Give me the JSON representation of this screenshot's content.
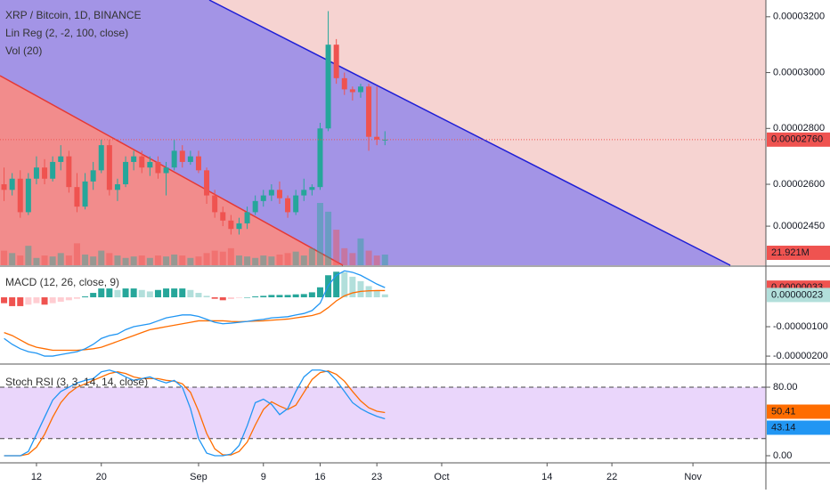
{
  "chart_data": [
    {
      "type": "candlestick",
      "title": "XRP / Bitcoin, 1D, BINANCE",
      "indicators": [
        "Lin Reg (2, -2, 100, close)",
        "Vol (20)"
      ],
      "x": [
        0,
        1,
        2,
        3,
        4,
        5,
        6,
        7,
        8,
        9,
        10,
        11,
        12,
        13,
        14,
        15,
        16,
        17,
        18,
        19,
        20,
        21,
        22,
        23,
        24,
        25,
        26,
        27,
        28,
        29,
        30,
        31,
        32,
        33,
        34,
        35,
        36,
        37,
        38,
        39,
        40,
        41,
        42,
        43,
        44,
        45,
        46,
        47
      ],
      "xlim": [
        -0.5,
        94
      ],
      "xticks": [
        {
          "value": 4,
          "label": "12"
        },
        {
          "value": 12,
          "label": "20"
        },
        {
          "value": 24,
          "label": "Sep"
        },
        {
          "value": 32,
          "label": "9"
        },
        {
          "value": 39,
          "label": "16"
        },
        {
          "value": 46,
          "label": "23"
        },
        {
          "value": 54,
          "label": "Oct"
        },
        {
          "value": 67,
          "label": "14"
        },
        {
          "value": 75,
          "label": "22"
        },
        {
          "value": 85,
          "label": "Nov"
        }
      ],
      "open": [
        2.6e-05,
        2.58e-05,
        2.62e-05,
        2.5e-05,
        2.62e-05,
        2.66e-05,
        2.62e-05,
        2.68e-05,
        2.7e-05,
        2.59e-05,
        2.52e-05,
        2.61e-05,
        2.65e-05,
        2.74e-05,
        2.58e-05,
        2.6e-05,
        2.68e-05,
        2.7e-05,
        2.66e-05,
        2.68e-05,
        2.64e-05,
        2.66e-05,
        2.72e-05,
        2.68e-05,
        2.7e-05,
        2.65e-05,
        2.56e-05,
        2.5e-05,
        2.47e-05,
        2.44e-05,
        2.46e-05,
        2.5e-05,
        2.54e-05,
        2.56e-05,
        2.58e-05,
        2.55e-05,
        2.5e-05,
        2.56e-05,
        2.58e-05,
        2.59e-05,
        2.8e-05,
        3.1e-05,
        2.98e-05,
        2.94e-05,
        2.93e-05,
        2.95e-05,
        2.77e-05,
        2.76e-05
      ],
      "high": [
        2.66e-05,
        2.64e-05,
        2.65e-05,
        2.64e-05,
        2.7e-05,
        2.69e-05,
        2.7e-05,
        2.74e-05,
        2.72e-05,
        2.64e-05,
        2.64e-05,
        2.68e-05,
        2.76e-05,
        2.76e-05,
        2.62e-05,
        2.7e-05,
        2.72e-05,
        2.72e-05,
        2.7e-05,
        2.7e-05,
        2.68e-05,
        2.76e-05,
        2.74e-05,
        2.72e-05,
        2.72e-05,
        2.66e-05,
        2.58e-05,
        2.52e-05,
        2.49e-05,
        2.48e-05,
        2.52e-05,
        2.56e-05,
        2.58e-05,
        2.6e-05,
        2.61e-05,
        2.56e-05,
        2.58e-05,
        2.62e-05,
        2.6e-05,
        2.82e-05,
        3.22e-05,
        3.12e-05,
        3e-05,
        2.95e-05,
        2.96e-05,
        2.96e-05,
        2.95e-05,
        2.79e-05
      ],
      "low": [
        2.54e-05,
        2.56e-05,
        2.48e-05,
        2.49e-05,
        2.6e-05,
        2.6e-05,
        2.61e-05,
        2.65e-05,
        2.57e-05,
        2.5e-05,
        2.51e-05,
        2.58e-05,
        2.64e-05,
        2.56e-05,
        2.54e-05,
        2.59e-05,
        2.65e-05,
        2.64e-05,
        2.63e-05,
        2.62e-05,
        2.56e-05,
        2.65e-05,
        2.66e-05,
        2.67e-05,
        2.64e-05,
        2.53e-05,
        2.48e-05,
        2.45e-05,
        2.42e-05,
        2.42e-05,
        2.44e-05,
        2.49e-05,
        2.52e-05,
        2.54e-05,
        2.53e-05,
        2.48e-05,
        2.49e-05,
        2.54e-05,
        2.56e-05,
        2.58e-05,
        2.79e-05,
        2.96e-05,
        2.92e-05,
        2.9e-05,
        2.91e-05,
        2.72e-05,
        2.74e-05,
        2.74e-05
      ],
      "close": [
        2.58e-05,
        2.62e-05,
        2.5e-05,
        2.62e-05,
        2.66e-05,
        2.62e-05,
        2.68e-05,
        2.7e-05,
        2.59e-05,
        2.52e-05,
        2.61e-05,
        2.65e-05,
        2.74e-05,
        2.58e-05,
        2.6e-05,
        2.68e-05,
        2.7e-05,
        2.66e-05,
        2.68e-05,
        2.64e-05,
        2.66e-05,
        2.72e-05,
        2.68e-05,
        2.7e-05,
        2.65e-05,
        2.56e-05,
        2.5e-05,
        2.47e-05,
        2.44e-05,
        2.46e-05,
        2.5e-05,
        2.54e-05,
        2.56e-05,
        2.58e-05,
        2.55e-05,
        2.5e-05,
        2.56e-05,
        2.58e-05,
        2.59e-05,
        2.8e-05,
        3.1e-05,
        2.98e-05,
        2.94e-05,
        2.93e-05,
        2.95e-05,
        2.77e-05,
        2.76e-05,
        2.76e-05
      ],
      "close_label": "0.00002760",
      "up_color": "#26a69a",
      "down_color": "#ef5350",
      "ylim": [
        2.31e-05,
        3.26e-05
      ],
      "yticks": [
        {
          "value": 3.2e-05,
          "label": "0.00003200"
        },
        {
          "value": 3e-05,
          "label": "0.00003000"
        },
        {
          "value": 2.8e-05,
          "label": "0.00002800"
        },
        {
          "value": 2.6e-05,
          "label": "0.00002600"
        },
        {
          "value": 2.45e-05,
          "label": "0.00002450"
        }
      ],
      "volume": {
        "values": [
          30000000,
          25000000,
          20000000,
          40000000,
          15000000,
          20000000,
          18000000,
          25000000,
          20000000,
          45000000,
          22000000,
          18000000,
          30000000,
          25000000,
          20000000,
          15000000,
          18000000,
          20000000,
          15000000,
          20000000,
          18000000,
          22000000,
          20000000,
          15000000,
          18000000,
          25000000,
          30000000,
          28000000,
          35000000,
          20000000,
          18000000,
          15000000,
          20000000,
          18000000,
          22000000,
          25000000,
          28000000,
          20000000,
          35000000,
          128000000,
          110000000,
          73000000,
          35000000,
          25000000,
          55000000,
          30000000,
          20000000,
          21921000
        ],
        "last_label": "21.921M",
        "ylim": [
          0,
          545000000
        ]
      }
    },
    {
      "type": "macd",
      "title": "MACD (12, 26, close, 9)",
      "macd": {
        "color": "#2196f3",
        "label_color": "#ef5350",
        "last_label": "0.00000033",
        "values": [
          -1.4e-06,
          -1.6e-06,
          -1.75e-06,
          -1.85e-06,
          -1.9e-06,
          -2e-06,
          -2e-06,
          -1.95e-06,
          -1.9e-06,
          -1.85e-06,
          -1.75e-06,
          -1.6e-06,
          -1.4e-06,
          -1.3e-06,
          -1.25e-06,
          -1.1e-06,
          -1e-06,
          -9.5e-07,
          -9e-07,
          -8e-07,
          -7e-07,
          -6.5e-07,
          -6e-07,
          -6e-07,
          -6.5e-07,
          -7.5e-07,
          -8.5e-07,
          -9e-07,
          -8.8e-07,
          -8.5e-07,
          -8.2e-07,
          -7.8e-07,
          -7.5e-07,
          -7e-07,
          -6.8e-07,
          -6.6e-07,
          -6e-07,
          -5.5e-07,
          -4.5e-07,
          -2e-07,
          4e-07,
          7.5e-07,
          9e-07,
          8.5e-07,
          7.5e-07,
          6e-07,
          4.5e-07,
          3.3e-07
        ]
      },
      "signal": {
        "color": "#ff6d00",
        "label_color": "#b2dfdb",
        "last_label": "0.00000023",
        "values": [
          -1.2e-06,
          -1.3e-06,
          -1.45e-06,
          -1.6e-06,
          -1.7e-06,
          -1.75e-06,
          -1.8e-06,
          -1.8e-06,
          -1.8e-06,
          -1.8e-06,
          -1.78e-06,
          -1.75e-06,
          -1.7e-06,
          -1.6e-06,
          -1.5e-06,
          -1.4e-06,
          -1.3e-06,
          -1.2e-06,
          -1.1e-06,
          -1.05e-06,
          -1e-06,
          -9.5e-07,
          -9e-07,
          -8.5e-07,
          -8e-07,
          -8e-07,
          -8e-07,
          -8e-07,
          -8.2e-07,
          -8.3e-07,
          -8.2e-07,
          -8.1e-07,
          -8e-07,
          -7.8e-07,
          -7.6e-07,
          -7.4e-07,
          -7e-07,
          -6.6e-07,
          -6.2e-07,
          -5.4e-07,
          -3.5e-07,
          -1.2e-07,
          5e-08,
          1.5e-07,
          2e-07,
          2.2e-07,
          2.3e-07,
          2.3e-07
        ]
      },
      "histogram": {
        "colors": [
          "#26a69a",
          "#b2dfdb",
          "#ef5350",
          "#ffcdd2"
        ],
        "values": [
          -2e-07,
          -3e-07,
          -3e-07,
          -2.5e-07,
          -2e-07,
          -2.5e-07,
          -2e-07,
          -1.5e-07,
          -1e-07,
          -5e-08,
          3e-08,
          1.5e-07,
          3e-07,
          3e-07,
          2.5e-07,
          3e-07,
          3e-07,
          2.5e-07,
          2e-07,
          2.5e-07,
          3e-07,
          3e-07,
          3e-07,
          2.5e-07,
          1.5e-07,
          5e-08,
          -5e-08,
          -1e-07,
          -6e-08,
          -2e-08,
          0,
          3e-08,
          5e-08,
          8e-08,
          8e-08,
          8e-08,
          1e-07,
          1.1e-07,
          1.7e-07,
          3.4e-07,
          7.5e-07,
          8.7e-07,
          8.5e-07,
          7e-07,
          5.5e-07,
          3.8e-07,
          2.2e-07,
          1e-07
        ]
      },
      "ylim": [
        -2.24e-06,
        1.03e-06
      ],
      "yticks": [
        {
          "value": -1e-06,
          "label": "-0.00000100"
        },
        {
          "value": -2e-06,
          "label": "-0.00000200"
        }
      ]
    },
    {
      "type": "stoch",
      "title": "Stoch RSI (3, 3, 14, 14, close)",
      "k": {
        "color": "#2196f3",
        "last_label": "43.14",
        "values": [
          0,
          0,
          0,
          5,
          25,
          45,
          65,
          75,
          80,
          85,
          88,
          90,
          98,
          100,
          97,
          92,
          88,
          90,
          92,
          88,
          85,
          88,
          80,
          55,
          20,
          3,
          0,
          0,
          2,
          12,
          35,
          62,
          66,
          60,
          48,
          55,
          75,
          92,
          100,
          100,
          98,
          88,
          75,
          62,
          55,
          50,
          46,
          43.14
        ]
      },
      "d": {
        "color": "#ff6d00",
        "last_label": "50.41",
        "values": [
          0,
          0,
          0,
          2,
          10,
          25,
          45,
          62,
          73,
          80,
          84,
          88,
          92,
          96,
          98,
          96,
          92,
          90,
          90,
          90,
          88,
          87,
          84,
          74,
          52,
          26,
          8,
          1,
          1,
          5,
          16,
          36,
          54,
          63,
          58,
          54,
          59,
          74,
          89,
          97,
          99,
          95,
          87,
          75,
          64,
          56,
          52,
          50.41
        ]
      },
      "band": [
        20,
        80
      ],
      "band_color": "#ead6fb",
      "ylim": [
        -8.3,
        106
      ],
      "yticks": [
        {
          "value": 80,
          "label": "80.00"
        },
        {
          "value": 0,
          "label": "0.00"
        }
      ]
    }
  ]
}
